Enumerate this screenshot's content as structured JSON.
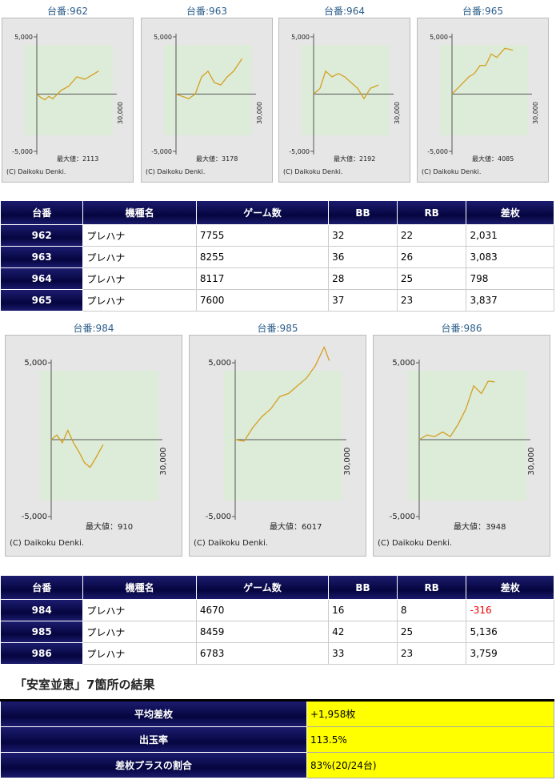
{
  "graphs": [
    {
      "type": "line",
      "title": "台番:962",
      "ylim": [
        -5000,
        5000
      ],
      "yticks": [
        {
          "value": 5000,
          "label": "5,000"
        },
        {
          "value": -5000,
          "label": "-5,000"
        }
      ],
      "xlim": [
        0,
        10000
      ],
      "x_axis_label": "30,000",
      "max_label": "最大値：2113",
      "copyright": "(C) Daikoku Denki.",
      "color": "#d4a020",
      "x": [
        0,
        500,
        1000,
        1500,
        2000,
        3000,
        4000,
        5000,
        6000,
        7000,
        7755
      ],
      "values": [
        0,
        -300,
        -500,
        -200,
        -400,
        300,
        700,
        1500,
        1300,
        1700,
        2031
      ]
    },
    {
      "type": "line",
      "title": "台番:963",
      "ylim": [
        -5000,
        5000
      ],
      "yticks": [
        {
          "value": 5000,
          "label": "5,000"
        },
        {
          "value": -5000,
          "label": "-5,000"
        }
      ],
      "xlim": [
        0,
        10000
      ],
      "x_axis_label": "30,000",
      "max_label": "最大値：3178",
      "copyright": "(C) Daikoku Denki.",
      "color": "#d4a020",
      "x": [
        0,
        800,
        1600,
        2400,
        3200,
        4000,
        4800,
        5600,
        6400,
        7200,
        8255
      ],
      "values": [
        0,
        -200,
        -400,
        0,
        1500,
        2000,
        1000,
        800,
        1500,
        2000,
        3083
      ]
    },
    {
      "type": "line",
      "title": "台番:964",
      "ylim": [
        -5000,
        5000
      ],
      "yticks": [
        {
          "value": 5000,
          "label": "5,000"
        },
        {
          "value": -5000,
          "label": "-5,000"
        }
      ],
      "xlim": [
        0,
        10000
      ],
      "x_axis_label": "30,000",
      "max_label": "最大値：2192",
      "copyright": "(C) Daikoku Denki.",
      "color": "#d4a020",
      "x": [
        0,
        800,
        1500,
        2300,
        3100,
        3900,
        4700,
        5500,
        6300,
        7100,
        8117
      ],
      "values": [
        0,
        500,
        2000,
        1500,
        1800,
        1500,
        1000,
        500,
        -400,
        500,
        798
      ]
    },
    {
      "type": "line",
      "title": "台番:965",
      "ylim": [
        -5000,
        5000
      ],
      "yticks": [
        {
          "value": 5000,
          "label": "5,000"
        },
        {
          "value": -5000,
          "label": "-5,000"
        }
      ],
      "xlim": [
        0,
        10000
      ],
      "x_axis_label": "30,000",
      "max_label": "最大値：4085",
      "copyright": "(C) Daikoku Denki.",
      "color": "#d4a020",
      "x": [
        0,
        700,
        1400,
        2100,
        2800,
        3500,
        4200,
        4900,
        5600,
        6600,
        7600
      ],
      "values": [
        0,
        500,
        1000,
        1500,
        1800,
        2500,
        2500,
        3500,
        3200,
        4000,
        3837
      ]
    },
    {
      "type": "line",
      "title": "台番:984",
      "ylim": [
        -5000,
        5000
      ],
      "yticks": [
        {
          "value": 5000,
          "label": "5,000"
        },
        {
          "value": -5000,
          "label": "-5,000"
        }
      ],
      "xlim": [
        0,
        10000
      ],
      "x_axis_label": "30,000",
      "max_label": "最大値：910",
      "copyright": "(C) Daikoku Denki.",
      "color": "#d4a020",
      "x": [
        0,
        500,
        1000,
        1500,
        2000,
        2500,
        3000,
        3500,
        4000,
        4670
      ],
      "values": [
        0,
        300,
        -200,
        600,
        -200,
        -800,
        -1500,
        -1800,
        -1200,
        -316
      ]
    },
    {
      "type": "line",
      "title": "台番:985",
      "ylim": [
        -5000,
        5000
      ],
      "yticks": [
        {
          "value": 5000,
          "label": "5,000"
        },
        {
          "value": -5000,
          "label": "-5,000"
        }
      ],
      "xlim": [
        0,
        10000
      ],
      "x_axis_label": "30,000",
      "max_label": "最大値：6017",
      "copyright": "(C) Daikoku Denki.",
      "color": "#d4a020",
      "x": [
        0,
        800,
        1600,
        2400,
        3200,
        4000,
        4800,
        5600,
        6400,
        7200,
        8000,
        8459
      ],
      "values": [
        0,
        -100,
        800,
        1500,
        2000,
        2800,
        3000,
        3500,
        4000,
        4800,
        6017,
        5136
      ]
    },
    {
      "type": "line",
      "title": "台番:986",
      "ylim": [
        -5000,
        5000
      ],
      "yticks": [
        {
          "value": 5000,
          "label": "5,000"
        },
        {
          "value": -5000,
          "label": "-5,000"
        }
      ],
      "xlim": [
        0,
        10000
      ],
      "x_axis_label": "30,000",
      "max_label": "最大値：3948",
      "copyright": "(C) Daikoku Denki.",
      "color": "#d4a020",
      "x": [
        0,
        700,
        1400,
        2100,
        2800,
        3500,
        4200,
        4900,
        5600,
        6200,
        6783
      ],
      "values": [
        0,
        300,
        200,
        500,
        200,
        1000,
        2000,
        3500,
        3000,
        3800,
        3759
      ]
    }
  ],
  "tables": [
    {
      "header": [
        "台番",
        "機種名",
        "ゲーム数",
        "BB",
        "RB",
        "差枚"
      ],
      "rows": [
        [
          "962",
          "プレハナ",
          "7755",
          "32",
          "22",
          "2,031"
        ],
        [
          "963",
          "プレハナ",
          "8255",
          "36",
          "26",
          "3,083"
        ],
        [
          "964",
          "プレハナ",
          "8117",
          "28",
          "25",
          "798"
        ],
        [
          "965",
          "プレハナ",
          "7600",
          "37",
          "23",
          "3,837"
        ]
      ]
    },
    {
      "header": [
        "台番",
        "機種名",
        "ゲーム数",
        "BB",
        "RB",
        "差枚"
      ],
      "rows": [
        [
          "984",
          "プレハナ",
          "4670",
          "16",
          "8",
          "-316"
        ],
        [
          "985",
          "プレハナ",
          "8459",
          "42",
          "25",
          "5,136"
        ],
        [
          "986",
          "プレハナ",
          "6783",
          "33",
          "23",
          "3,759"
        ]
      ]
    }
  ],
  "summary": {
    "heading": "「安室並恵」7箇所の結果",
    "rows": [
      [
        "平均差枚",
        "+1,958枚"
      ],
      [
        "出玉率",
        "113.5%"
      ],
      [
        "差枚プラスの割合",
        "83%(20/24台)"
      ]
    ]
  }
}
